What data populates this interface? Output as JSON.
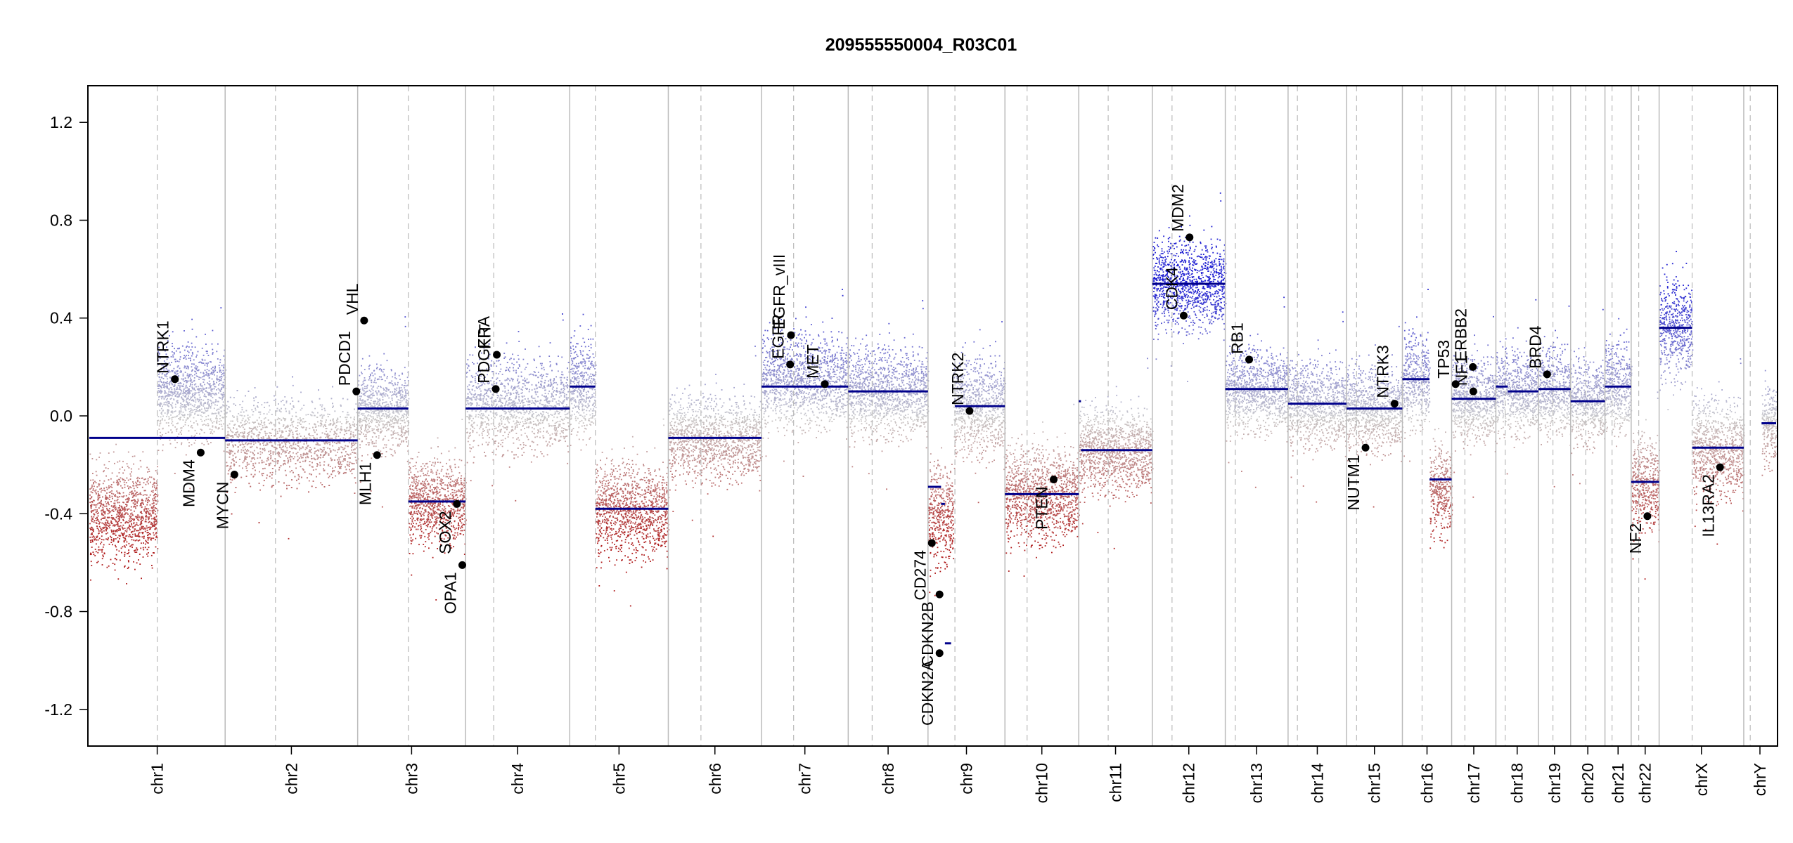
{
  "chart_data": {
    "type": "scatter",
    "title": "209555550004_R03C01",
    "xlabel": "",
    "ylabel": "",
    "ylim": [
      -1.35,
      1.35
    ],
    "y_ticks": [
      -1.2,
      -0.8,
      -0.4,
      0.0,
      0.4,
      0.8,
      1.2
    ],
    "y_tick_labels": [
      "-1.2",
      "-0.8",
      "-0.4",
      "0.0",
      "0.4",
      "0.8",
      "1.2"
    ],
    "grid": false,
    "colors": {
      "gain": "#0000cc",
      "loss": "#b22222",
      "neutral": "#c8c8c8",
      "segment": "#00008b",
      "boundary": "#bbbbbb",
      "centromere": "#bbbbbb",
      "gene_point": "#000000"
    },
    "chromosomes": [
      {
        "name": "chr1",
        "span": 249.3,
        "centromere": 0.5
      },
      {
        "name": "chr2",
        "span": 243.2,
        "centromere": 0.38
      },
      {
        "name": "chr3",
        "span": 198.0,
        "centromere": 0.47
      },
      {
        "name": "chr4",
        "span": 191.2,
        "centromere": 0.27
      },
      {
        "name": "chr5",
        "span": 180.9,
        "centromere": 0.26
      },
      {
        "name": "chr6",
        "span": 171.1,
        "centromere": 0.35
      },
      {
        "name": "chr7",
        "span": 159.1,
        "centromere": 0.37
      },
      {
        "name": "chr8",
        "span": 146.4,
        "centromere": 0.3
      },
      {
        "name": "chr9",
        "span": 141.2,
        "centromere": 0.35
      },
      {
        "name": "chr10",
        "span": 135.5,
        "centromere": 0.3
      },
      {
        "name": "chr11",
        "span": 135.0,
        "centromere": 0.4
      },
      {
        "name": "chr12",
        "span": 133.9,
        "centromere": 0.27
      },
      {
        "name": "chr13",
        "span": 115.2,
        "centromere": 0.16
      },
      {
        "name": "chr14",
        "span": 107.3,
        "centromere": 0.16
      },
      {
        "name": "chr15",
        "span": 102.5,
        "centromere": 0.18
      },
      {
        "name": "chr16",
        "span": 90.4,
        "centromere": 0.4
      },
      {
        "name": "chr17",
        "span": 81.2,
        "centromere": 0.3
      },
      {
        "name": "chr18",
        "span": 78.1,
        "centromere": 0.22
      },
      {
        "name": "chr19",
        "span": 59.1,
        "centromere": 0.45
      },
      {
        "name": "chr20",
        "span": 63.0,
        "centromere": 0.44
      },
      {
        "name": "chr21",
        "span": 48.1,
        "centromere": 0.27
      },
      {
        "name": "chr22",
        "span": 51.3,
        "centromere": 0.27
      },
      {
        "name": "chrX",
        "span": 155.3,
        "centromere": 0.39
      },
      {
        "name": "chrY",
        "span": 59.4,
        "centromere": 0.2
      }
    ],
    "segments": [
      {
        "chr": "chr1",
        "start": 0.0,
        "end": 1.0,
        "value": -0.09
      },
      {
        "chr": "chr2",
        "start": 0.0,
        "end": 1.0,
        "value": -0.1
      },
      {
        "chr": "chr3",
        "start": 0.0,
        "end": 0.47,
        "value": 0.03
      },
      {
        "chr": "chr3",
        "start": 0.47,
        "end": 1.0,
        "value": -0.35
      },
      {
        "chr": "chr4",
        "start": 0.0,
        "end": 1.0,
        "value": 0.03
      },
      {
        "chr": "chr5",
        "start": 0.0,
        "end": 0.26,
        "value": 0.12
      },
      {
        "chr": "chr5",
        "start": 0.26,
        "end": 1.0,
        "value": -0.38
      },
      {
        "chr": "chr6",
        "start": 0.0,
        "end": 1.0,
        "value": -0.09
      },
      {
        "chr": "chr7",
        "start": 0.0,
        "end": 1.0,
        "value": 0.12
      },
      {
        "chr": "chr8",
        "start": 0.0,
        "end": 1.0,
        "value": 0.1
      },
      {
        "chr": "chr9",
        "start": 0.0,
        "end": 0.17,
        "value": -0.29
      },
      {
        "chr": "chr9",
        "start": 0.17,
        "end": 0.22,
        "value": -0.36
      },
      {
        "chr": "chr9",
        "start": 0.22,
        "end": 0.3,
        "value": -0.93
      },
      {
        "chr": "chr9",
        "start": 0.35,
        "end": 1.0,
        "value": 0.04
      },
      {
        "chr": "chr10",
        "start": 0.0,
        "end": 1.0,
        "value": -0.32
      },
      {
        "chr": "chr11",
        "start": 0.0,
        "end": 0.03,
        "value": 0.06
      },
      {
        "chr": "chr11",
        "start": 0.03,
        "end": 1.0,
        "value": -0.14
      },
      {
        "chr": "chr12",
        "start": 0.0,
        "end": 1.0,
        "value": 0.54
      },
      {
        "chr": "chr13",
        "start": 0.0,
        "end": 1.0,
        "value": 0.11
      },
      {
        "chr": "chr14",
        "start": 0.0,
        "end": 1.0,
        "value": 0.05
      },
      {
        "chr": "chr15",
        "start": 0.0,
        "end": 1.0,
        "value": 0.03
      },
      {
        "chr": "chr16",
        "start": 0.0,
        "end": 0.55,
        "value": 0.15
      },
      {
        "chr": "chr16",
        "start": 0.55,
        "end": 1.0,
        "value": -0.26
      },
      {
        "chr": "chr17",
        "start": 0.0,
        "end": 1.0,
        "value": 0.07
      },
      {
        "chr": "chr18",
        "start": 0.0,
        "end": 0.28,
        "value": 0.12
      },
      {
        "chr": "chr18",
        "start": 0.28,
        "end": 1.0,
        "value": 0.1
      },
      {
        "chr": "chr19",
        "start": 0.0,
        "end": 1.0,
        "value": 0.11
      },
      {
        "chr": "chr20",
        "start": 0.0,
        "end": 1.0,
        "value": 0.06
      },
      {
        "chr": "chr21",
        "start": 0.0,
        "end": 1.0,
        "value": 0.12
      },
      {
        "chr": "chr22",
        "start": 0.0,
        "end": 1.0,
        "value": -0.27
      },
      {
        "chr": "chrX",
        "start": 0.0,
        "end": 0.39,
        "value": 0.36
      },
      {
        "chr": "chrX",
        "start": 0.39,
        "end": 1.0,
        "value": -0.13
      },
      {
        "chr": "chrY",
        "start": 0.55,
        "end": 1.0,
        "value": -0.03
      }
    ],
    "genes": [
      {
        "name": "NTRK1",
        "chr": "chr1",
        "pos": 0.63,
        "value": 0.15
      },
      {
        "name": "MDM4",
        "chr": "chr1",
        "pos": 0.82,
        "value": -0.15
      },
      {
        "name": "MYCN",
        "chr": "chr2",
        "pos": 0.07,
        "value": -0.24
      },
      {
        "name": "PDCD1",
        "chr": "chr2",
        "pos": 0.99,
        "value": 0.1
      },
      {
        "name": "VHL",
        "chr": "chr3",
        "pos": 0.06,
        "value": 0.39
      },
      {
        "name": "MLH1",
        "chr": "chr3",
        "pos": 0.18,
        "value": -0.16
      },
      {
        "name": "SOX2",
        "chr": "chr3",
        "pos": 0.92,
        "value": -0.36
      },
      {
        "name": "OPA1",
        "chr": "chr3",
        "pos": 0.97,
        "value": -0.61
      },
      {
        "name": "PDGFRA",
        "chr": "chr4",
        "pos": 0.29,
        "value": 0.11
      },
      {
        "name": "KIT",
        "chr": "chr4",
        "pos": 0.3,
        "value": 0.25
      },
      {
        "name": "EGFR",
        "chr": "chr7",
        "pos": 0.33,
        "value": 0.21
      },
      {
        "name": "EGFR_vIII",
        "chr": "chr7",
        "pos": 0.34,
        "value": 0.33
      },
      {
        "name": "MET",
        "chr": "chr7",
        "pos": 0.73,
        "value": 0.13
      },
      {
        "name": "CD274",
        "chr": "chr9",
        "pos": 0.05,
        "value": -0.52
      },
      {
        "name": "CDKN2A",
        "chr": "chr9",
        "pos": 0.15,
        "value": -0.97
      },
      {
        "name": "CDKN2B",
        "chr": "chr9",
        "pos": 0.15,
        "value": -0.73
      },
      {
        "name": "NTRK2",
        "chr": "chr9",
        "pos": 0.54,
        "value": 0.02
      },
      {
        "name": "PTEN",
        "chr": "chr10",
        "pos": 0.66,
        "value": -0.26
      },
      {
        "name": "CDK4",
        "chr": "chr12",
        "pos": 0.43,
        "value": 0.41
      },
      {
        "name": "MDM2",
        "chr": "chr12",
        "pos": 0.51,
        "value": 0.73
      },
      {
        "name": "RB1",
        "chr": "chr13",
        "pos": 0.38,
        "value": 0.23
      },
      {
        "name": "NUTM1",
        "chr": "chr15",
        "pos": 0.34,
        "value": -0.13
      },
      {
        "name": "NTRK3",
        "chr": "chr15",
        "pos": 0.86,
        "value": 0.05
      },
      {
        "name": "TP53",
        "chr": "chr17",
        "pos": 0.09,
        "value": 0.13
      },
      {
        "name": "ERBB2",
        "chr": "chr17",
        "pos": 0.48,
        "value": 0.2
      },
      {
        "name": "NF1",
        "chr": "chr17",
        "pos": 0.49,
        "value": 0.1
      },
      {
        "name": "BRD4",
        "chr": "chr19",
        "pos": 0.27,
        "value": 0.17
      },
      {
        "name": "NF2",
        "chr": "chr22",
        "pos": 0.58,
        "value": -0.41
      },
      {
        "name": "IL13RA2",
        "chr": "chrX",
        "pos": 0.72,
        "value": -0.21
      }
    ],
    "probe_profile": [
      {
        "chr": "chr1",
        "p_start": 0.0,
        "p_end": 0.5,
        "q_start": 0.5,
        "q_end": 1.0,
        "p_mean": -0.4,
        "q_mean": 0.1,
        "spread": 0.17
      },
      {
        "chr": "chr2",
        "p_start": 0.0,
        "p_end": 1.0,
        "q_start": 1.0,
        "q_end": 1.0,
        "p_mean": -0.1,
        "q_mean": -0.1,
        "spread": 0.15
      },
      {
        "chr": "chr3",
        "p_start": 0.0,
        "p_end": 0.47,
        "q_start": 0.47,
        "q_end": 1.0,
        "p_mean": 0.03,
        "q_mean": -0.35,
        "spread": 0.15
      },
      {
        "chr": "chr4",
        "p_start": 0.0,
        "p_end": 1.0,
        "q_start": 1.0,
        "q_end": 1.0,
        "p_mean": 0.05,
        "q_mean": 0.05,
        "spread": 0.17
      },
      {
        "chr": "chr5",
        "p_start": 0.0,
        "p_end": 0.26,
        "q_start": 0.26,
        "q_end": 1.0,
        "p_mean": 0.12,
        "q_mean": -0.38,
        "spread": 0.17
      },
      {
        "chr": "chr6",
        "p_start": 0.0,
        "p_end": 1.0,
        "q_start": 1.0,
        "q_end": 1.0,
        "p_mean": -0.09,
        "q_mean": -0.09,
        "spread": 0.15
      },
      {
        "chr": "chr7",
        "p_start": 0.0,
        "p_end": 1.0,
        "q_start": 1.0,
        "q_end": 1.0,
        "p_mean": 0.15,
        "q_mean": 0.15,
        "spread": 0.17
      },
      {
        "chr": "chr8",
        "p_start": 0.0,
        "p_end": 1.0,
        "q_start": 1.0,
        "q_end": 1.0,
        "p_mean": 0.1,
        "q_mean": 0.1,
        "spread": 0.16
      },
      {
        "chr": "chr9",
        "p_start": 0.0,
        "p_end": 0.33,
        "q_start": 0.33,
        "q_end": 1.0,
        "p_mean": -0.4,
        "q_mean": 0.04,
        "spread": 0.18
      },
      {
        "chr": "chr10",
        "p_start": 0.0,
        "p_end": 1.0,
        "q_start": 1.0,
        "q_end": 1.0,
        "p_mean": -0.32,
        "q_mean": -0.32,
        "spread": 0.17
      },
      {
        "chr": "chr11",
        "p_start": 0.0,
        "p_end": 1.0,
        "q_start": 1.0,
        "q_end": 1.0,
        "p_mean": -0.14,
        "q_mean": -0.14,
        "spread": 0.15
      },
      {
        "chr": "chr12",
        "p_start": 0.0,
        "p_end": 1.0,
        "q_start": 1.0,
        "q_end": 1.0,
        "p_mean": 0.54,
        "q_mean": 0.54,
        "spread": 0.16
      },
      {
        "chr": "chr13",
        "p_start": 0.0,
        "p_end": 1.0,
        "q_start": 1.0,
        "q_end": 1.0,
        "p_mean": 0.11,
        "q_mean": 0.11,
        "spread": 0.15
      },
      {
        "chr": "chr14",
        "p_start": 0.0,
        "p_end": 1.0,
        "q_start": 1.0,
        "q_end": 1.0,
        "p_mean": 0.05,
        "q_mean": 0.05,
        "spread": 0.15
      },
      {
        "chr": "chr15",
        "p_start": 0.0,
        "p_end": 1.0,
        "q_start": 1.0,
        "q_end": 1.0,
        "p_mean": 0.03,
        "q_mean": 0.03,
        "spread": 0.15
      },
      {
        "chr": "chr16",
        "p_start": 0.0,
        "p_end": 0.55,
        "q_start": 0.55,
        "q_end": 1.0,
        "p_mean": 0.15,
        "q_mean": -0.3,
        "spread": 0.17
      },
      {
        "chr": "chr17",
        "p_start": 0.0,
        "p_end": 1.0,
        "q_start": 1.0,
        "q_end": 1.0,
        "p_mean": 0.07,
        "q_mean": 0.07,
        "spread": 0.15
      },
      {
        "chr": "chr18",
        "p_start": 0.0,
        "p_end": 1.0,
        "q_start": 1.0,
        "q_end": 1.0,
        "p_mean": 0.1,
        "q_mean": 0.1,
        "spread": 0.15
      },
      {
        "chr": "chr19",
        "p_start": 0.0,
        "p_end": 1.0,
        "q_start": 1.0,
        "q_end": 1.0,
        "p_mean": 0.11,
        "q_mean": 0.11,
        "spread": 0.16
      },
      {
        "chr": "chr20",
        "p_start": 0.0,
        "p_end": 1.0,
        "q_start": 1.0,
        "q_end": 1.0,
        "p_mean": 0.06,
        "q_mean": 0.06,
        "spread": 0.15
      },
      {
        "chr": "chr21",
        "p_start": 0.0,
        "p_end": 1.0,
        "q_start": 1.0,
        "q_end": 1.0,
        "p_mean": 0.12,
        "q_mean": 0.12,
        "spread": 0.16
      },
      {
        "chr": "chr22",
        "p_start": 0.0,
        "p_end": 1.0,
        "q_start": 1.0,
        "q_end": 1.0,
        "p_mean": -0.27,
        "q_mean": -0.27,
        "spread": 0.17
      },
      {
        "chr": "chrX",
        "p_start": 0.0,
        "p_end": 0.39,
        "q_start": 0.39,
        "q_end": 1.0,
        "p_mean": 0.36,
        "q_mean": -0.13,
        "spread": 0.18
      },
      {
        "chr": "chrY",
        "p_start": 0.55,
        "p_end": 1.0,
        "q_start": 1.0,
        "q_end": 1.0,
        "p_mean": -0.03,
        "q_mean": -0.03,
        "spread": 0.15
      }
    ]
  }
}
